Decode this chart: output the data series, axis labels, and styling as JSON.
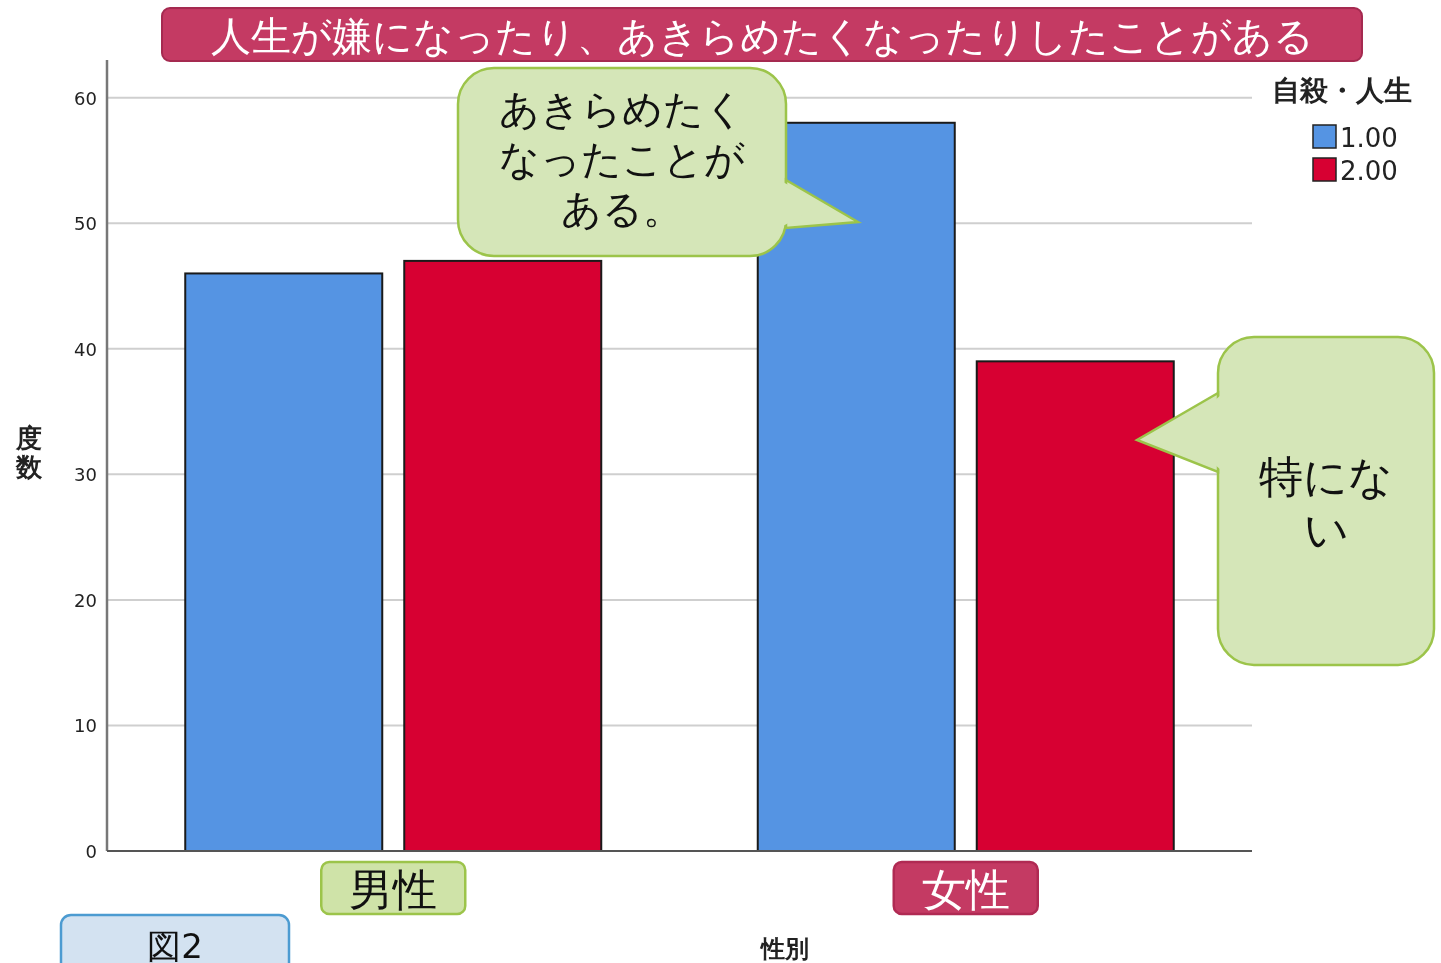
{
  "chart_data": {
    "type": "bar",
    "title": "人生が嫌になったり、あきらめたくなったりしたことがある",
    "xlabel": "性別",
    "ylabel": "度数",
    "legend_title": "自殺・人生",
    "categories": [
      "男性",
      "女性"
    ],
    "series": [
      {
        "name": "1.00",
        "color": "#5594e3",
        "values": [
          46,
          58
        ]
      },
      {
        "name": "2.00",
        "color": "#d70032",
        "values": [
          47,
          39
        ]
      }
    ],
    "ylim": [
      0,
      63
    ],
    "yticks": [
      0,
      10,
      20,
      30,
      40,
      50,
      60
    ],
    "grid": "y",
    "legend": "top right",
    "annotations": [
      "あきらめたくなったことがある。",
      "特にない",
      "図2"
    ]
  }
}
